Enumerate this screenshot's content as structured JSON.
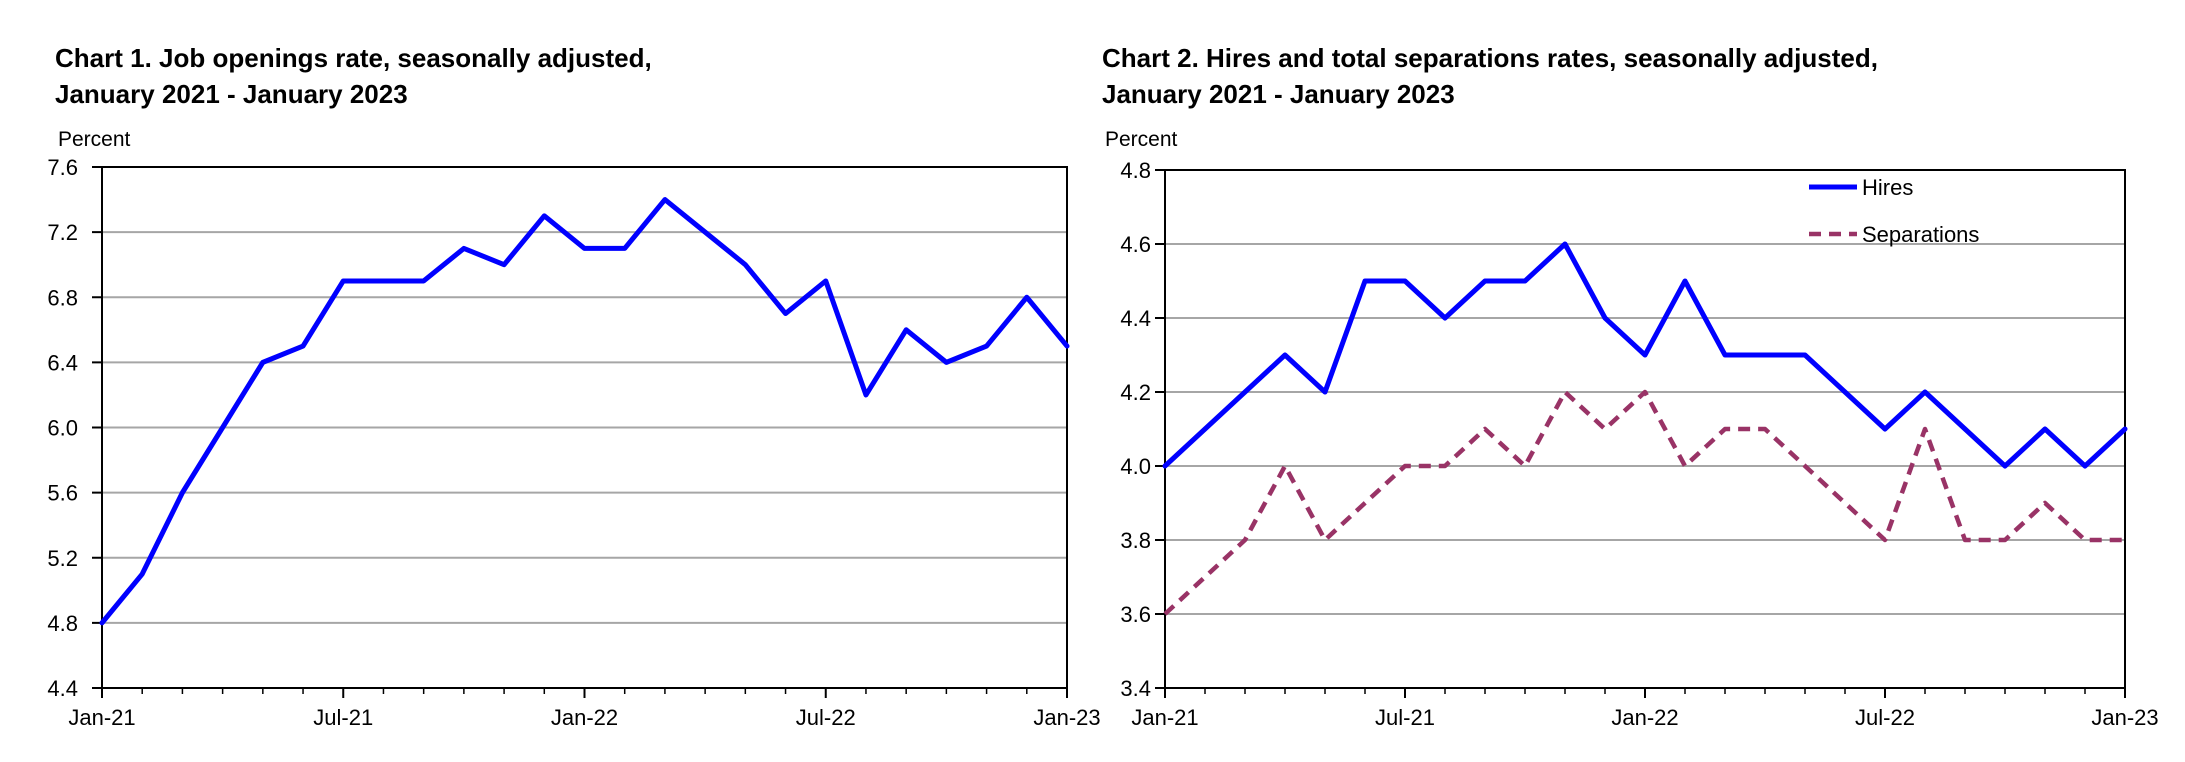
{
  "figure": {
    "background": "#ffffff",
    "axis_color": "#000000",
    "gridline_color": "#a6a6a6",
    "text_color": "#000000"
  },
  "chart_data": [
    {
      "type": "line",
      "title_lines": [
        "Chart 1. Job openings rate, seasonally adjusted,",
        "January 2021 - January 2023"
      ],
      "ylabel": "Percent",
      "xlabel": "",
      "ylim": [
        4.4,
        7.6
      ],
      "ytick_step": 0.4,
      "grid": true,
      "legend": false,
      "xtick_label_every": 6,
      "categories": [
        "Jan-21",
        "Feb-21",
        "Mar-21",
        "Apr-21",
        "May-21",
        "Jun-21",
        "Jul-21",
        "Aug-21",
        "Sep-21",
        "Oct-21",
        "Nov-21",
        "Dec-21",
        "Jan-22",
        "Feb-22",
        "Mar-22",
        "Apr-22",
        "May-22",
        "Jun-22",
        "Jul-22",
        "Aug-22",
        "Sep-22",
        "Oct-22",
        "Nov-22",
        "Dec-22",
        "Jan-23"
      ],
      "xtick_labels_shown": [
        "Jan-21",
        "Jul-21",
        "Jan-22",
        "Jul-22",
        "Jan-23"
      ],
      "series": [
        {
          "name": "Job openings rate",
          "color": "#0000ff",
          "style": "solid",
          "values": [
            4.8,
            5.1,
            5.6,
            6.0,
            6.4,
            6.5,
            6.9,
            6.9,
            6.9,
            7.1,
            7.0,
            7.3,
            7.1,
            7.1,
            7.4,
            7.2,
            7.0,
            6.7,
            6.9,
            6.2,
            6.6,
            6.4,
            6.5,
            6.8,
            6.5
          ]
        }
      ]
    },
    {
      "type": "line",
      "title_lines": [
        "Chart 2. Hires and total separations rates, seasonally adjusted,",
        "January 2021 - January 2023"
      ],
      "ylabel": "Percent",
      "xlabel": "",
      "ylim": [
        3.4,
        4.8
      ],
      "ytick_step": 0.2,
      "grid": true,
      "legend": true,
      "legend_position": "top-right",
      "xtick_label_every": 6,
      "categories": [
        "Jan-21",
        "Feb-21",
        "Mar-21",
        "Apr-21",
        "May-21",
        "Jun-21",
        "Jul-21",
        "Aug-21",
        "Sep-21",
        "Oct-21",
        "Nov-21",
        "Dec-21",
        "Jan-22",
        "Feb-22",
        "Mar-22",
        "Apr-22",
        "May-22",
        "Jun-22",
        "Jul-22",
        "Aug-22",
        "Sep-22",
        "Oct-22",
        "Nov-22",
        "Dec-22",
        "Jan-23"
      ],
      "xtick_labels_shown": [
        "Jan-21",
        "Jul-21",
        "Jan-22",
        "Jul-22",
        "Jan-23"
      ],
      "series": [
        {
          "name": "Hires",
          "color": "#0000ff",
          "style": "solid",
          "values": [
            4.0,
            4.1,
            4.2,
            4.3,
            4.2,
            4.5,
            4.5,
            4.4,
            4.5,
            4.5,
            4.6,
            4.4,
            4.3,
            4.5,
            4.3,
            4.3,
            4.3,
            4.2,
            4.1,
            4.2,
            4.1,
            4.0,
            4.1,
            4.0,
            4.1
          ]
        },
        {
          "name": "Separations",
          "color": "#993366",
          "style": "dashed",
          "values": [
            3.6,
            3.7,
            3.8,
            4.0,
            3.8,
            3.9,
            4.0,
            4.0,
            4.1,
            4.0,
            4.2,
            4.1,
            4.2,
            4.0,
            4.1,
            4.1,
            4.0,
            3.9,
            3.8,
            4.1,
            3.8,
            3.8,
            3.9,
            3.8,
            3.8
          ]
        }
      ]
    }
  ]
}
